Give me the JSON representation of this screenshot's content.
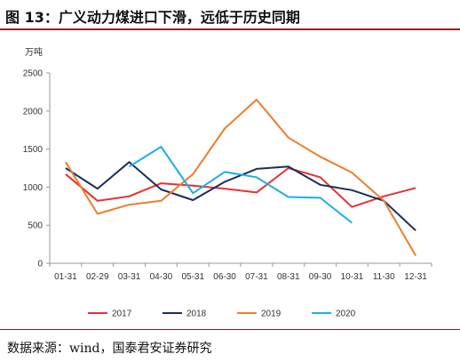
{
  "title": "图 13：广义动力煤进口下滑，远低于历史同期",
  "source": "数据来源：wind，国泰君安证券研究",
  "chart_data": {
    "type": "line",
    "ylabel": "万吨",
    "ylim": [
      0,
      2500
    ],
    "yticks": [
      0,
      500,
      1000,
      1500,
      2000,
      2500
    ],
    "categories": [
      "01-31",
      "02-29",
      "03-31",
      "04-30",
      "05-31",
      "06-30",
      "07-31",
      "08-31",
      "09-30",
      "10-31",
      "11-30",
      "12-31"
    ],
    "legend_position": "bottom",
    "grid": false,
    "series": [
      {
        "name": "2017",
        "color": "#e8312f",
        "values": [
          1170,
          820,
          880,
          1050,
          1020,
          980,
          930,
          1250,
          1130,
          740,
          880,
          990
        ]
      },
      {
        "name": "2018",
        "color": "#1b2e5e",
        "values": [
          1250,
          980,
          1330,
          970,
          830,
          1070,
          1240,
          1270,
          1030,
          960,
          820,
          430
        ]
      },
      {
        "name": "2019",
        "color": "#ee7d2a",
        "values": [
          1330,
          650,
          770,
          820,
          1170,
          1770,
          2150,
          1650,
          1400,
          1190,
          820,
          100
        ]
      },
      {
        "name": "2020",
        "color": "#19b0e4",
        "values": [
          null,
          null,
          1270,
          1530,
          920,
          1200,
          1130,
          870,
          860,
          530,
          null,
          null
        ]
      }
    ]
  }
}
